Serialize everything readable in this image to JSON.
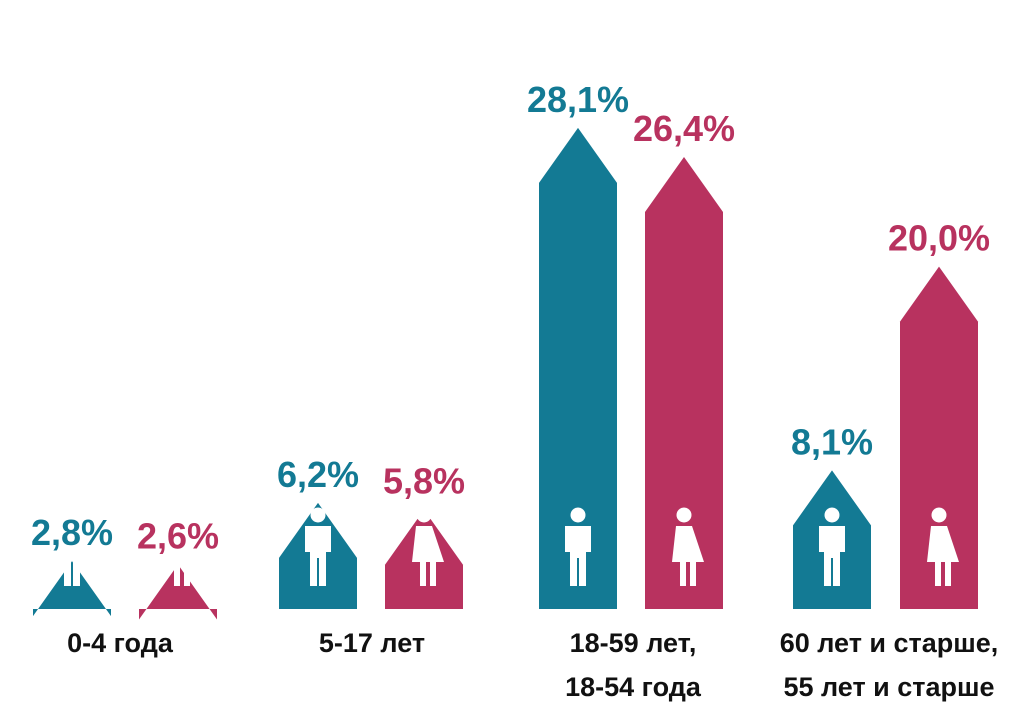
{
  "chart_data": {
    "type": "bar",
    "categories": [
      [
        "0-4 года"
      ],
      [
        "5-17 лет"
      ],
      [
        "18-59 лет,",
        "18-54 года"
      ],
      [
        "60 лет и старше,",
        "55 лет и старше"
      ]
    ],
    "series": [
      {
        "values": [
          2.8,
          6.2,
          28.1,
          8.1
        ],
        "labels": [
          "2,8%",
          "6,2%",
          "28,1%",
          "8,1%"
        ],
        "color": "#137a94",
        "icon": "man-icon"
      },
      {
        "values": [
          2.6,
          5.8,
          26.4,
          20.0
        ],
        "labels": [
          "2,6%",
          "5,8%",
          "26,4%",
          "20,0%"
        ],
        "color": "#b8325f",
        "icon": "woman-icon"
      }
    ],
    "ylim": [
      0,
      30
    ],
    "grid": false,
    "legend": "none"
  }
}
